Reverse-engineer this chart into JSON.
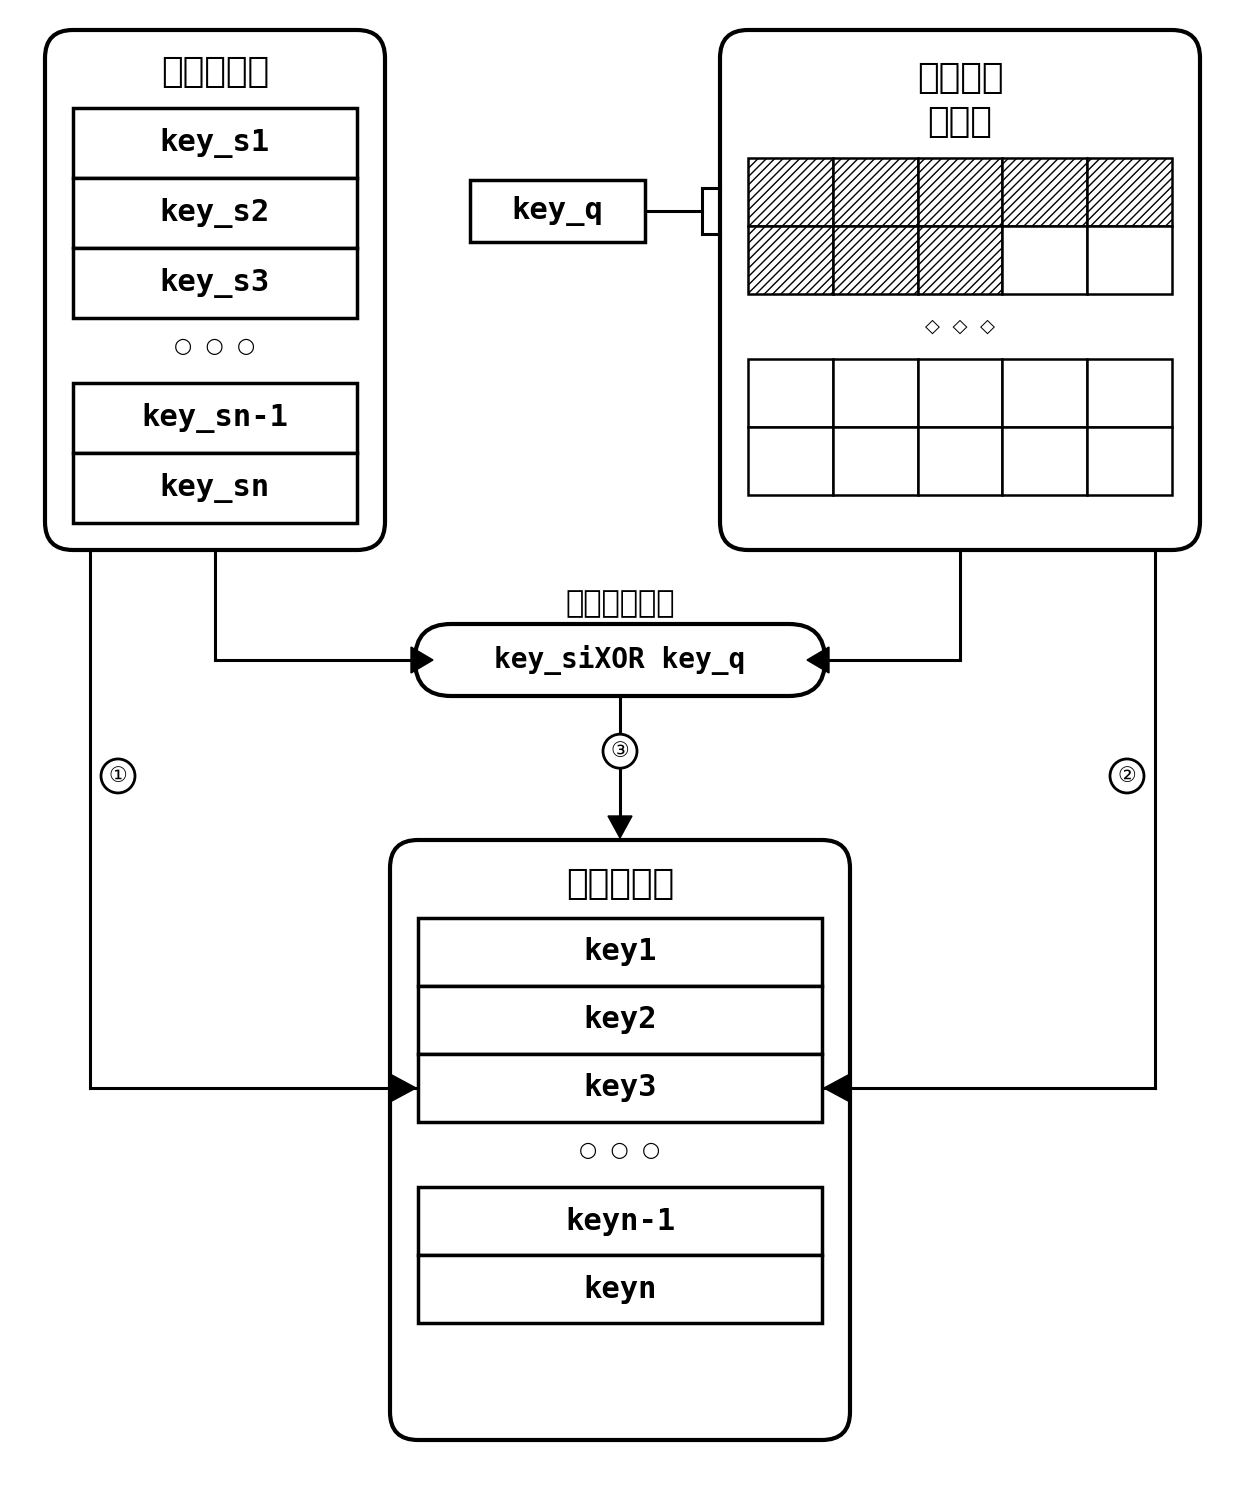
{
  "classic_table_label": "经典密鑰表",
  "classic_keys": [
    "key_s1",
    "key_s2",
    "key_s3"
  ],
  "classic_keys_bottom": [
    "key_sn-1",
    "key_sn"
  ],
  "quantum_table_label1": "量子密鑰",
  "quantum_table_label2": "储存表",
  "key_q_label": "key_q",
  "xor_label": "key_siXOR key_q",
  "preset_label": "预定运算模式",
  "final_table_label": "最终密鑰表",
  "final_keys_top": [
    "key1",
    "key2",
    "key3"
  ],
  "final_keys_bottom": [
    "keyn-1",
    "keyn"
  ],
  "bg_color": "#ffffff"
}
